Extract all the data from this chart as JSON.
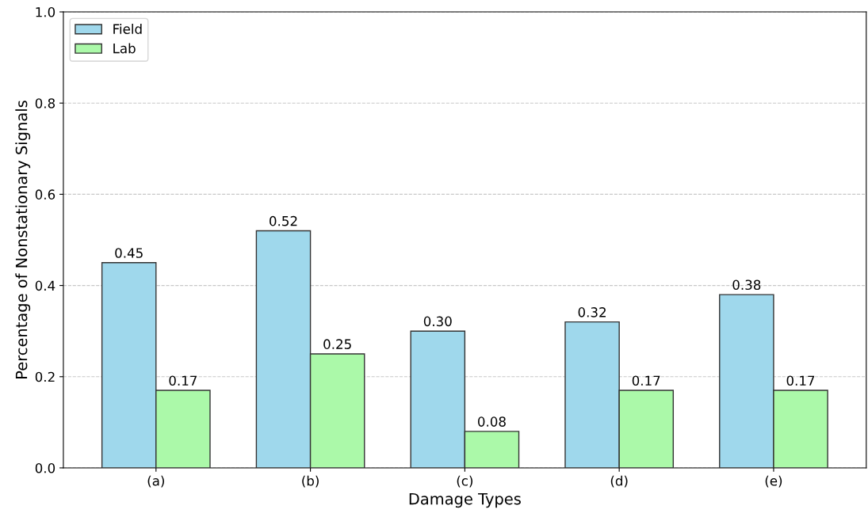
{
  "chart_data": {
    "type": "bar",
    "xlabel": "Damage Types",
    "ylabel": "Percentage of Nonstationary Signals",
    "categories": [
      "(a)",
      "(b)",
      "(c)",
      "(d)",
      "(e)"
    ],
    "series": [
      {
        "name": "Field",
        "color": "#9fd8ec",
        "values": [
          0.45,
          0.52,
          0.3,
          0.32,
          0.38
        ],
        "value_labels": [
          "0.45",
          "0.52",
          "0.30",
          "0.32",
          "0.38"
        ]
      },
      {
        "name": "Lab",
        "color": "#abf9a9",
        "values": [
          0.17,
          0.25,
          0.08,
          0.17,
          0.17
        ],
        "value_labels": [
          "0.17",
          "0.25",
          "0.08",
          "0.17",
          "0.17"
        ]
      }
    ],
    "ylim": [
      0,
      1.0
    ],
    "yticks": [
      {
        "value": 0,
        "label": "0.0"
      },
      {
        "value": 0.2,
        "label": "0.2"
      },
      {
        "value": 0.4,
        "label": "0.4"
      },
      {
        "value": 0.6,
        "label": "0.6"
      },
      {
        "value": 0.8,
        "label": "0.8"
      },
      {
        "value": 1.0,
        "label": "1.0"
      }
    ],
    "grid": "y",
    "legend": "top left"
  }
}
